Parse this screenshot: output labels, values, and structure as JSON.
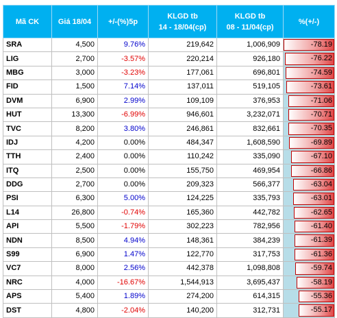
{
  "headers": {
    "code": "Mã CK",
    "price": "Giá 18/04",
    "change5": "+/-(%)5p",
    "vol1_line1": "KLGD tb",
    "vol1_line2": "14 - 18/04(cp)",
    "vol2_line1": "KLGD tb",
    "vol2_line2": "08 - 11/04(cp)",
    "pct": "%(+/-)"
  },
  "colors": {
    "header_bg": "#00b0f0",
    "positive": "#0000cc",
    "negative": "#e00000",
    "bar": "#e04848",
    "pct_bg": "#b7dde8"
  },
  "rows": [
    {
      "code": "SRA",
      "price": "4,500",
      "change": "9.76%",
      "dir": "pos",
      "vol1": "219,642",
      "vol2": "1,006,909",
      "pct": "-78.19",
      "frac": 1.0
    },
    {
      "code": "LIG",
      "price": "2,700",
      "change": "-3.57%",
      "dir": "neg",
      "vol1": "220,214",
      "vol2": "926,180",
      "pct": "-76.22",
      "frac": 0.975
    },
    {
      "code": "MBG",
      "price": "3,000",
      "change": "-3.23%",
      "dir": "neg",
      "vol1": "177,061",
      "vol2": "696,801",
      "pct": "-74.59",
      "frac": 0.954
    },
    {
      "code": "FID",
      "price": "1,500",
      "change": "7.14%",
      "dir": "pos",
      "vol1": "137,011",
      "vol2": "519,105",
      "pct": "-73.61",
      "frac": 0.941
    },
    {
      "code": "DVM",
      "price": "6,900",
      "change": "2.99%",
      "dir": "pos",
      "vol1": "109,109",
      "vol2": "376,953",
      "pct": "-71.06",
      "frac": 0.909
    },
    {
      "code": "HUT",
      "price": "13,300",
      "change": "-6.99%",
      "dir": "neg",
      "vol1": "946,601",
      "vol2": "3,232,071",
      "pct": "-70.71",
      "frac": 0.904
    },
    {
      "code": "TVC",
      "price": "8,200",
      "change": "3.80%",
      "dir": "pos",
      "vol1": "246,861",
      "vol2": "832,661",
      "pct": "-70.35",
      "frac": 0.9
    },
    {
      "code": "IDJ",
      "price": "4,200",
      "change": "0.00%",
      "dir": "zero",
      "vol1": "484,347",
      "vol2": "1,608,590",
      "pct": "-69.89",
      "frac": 0.894
    },
    {
      "code": "TTH",
      "price": "2,400",
      "change": "0.00%",
      "dir": "zero",
      "vol1": "110,242",
      "vol2": "335,090",
      "pct": "-67.10",
      "frac": 0.858
    },
    {
      "code": "ITQ",
      "price": "2,500",
      "change": "0.00%",
      "dir": "zero",
      "vol1": "155,750",
      "vol2": "469,954",
      "pct": "-66.86",
      "frac": 0.855
    },
    {
      "code": "DDG",
      "price": "2,700",
      "change": "0.00%",
      "dir": "zero",
      "vol1": "209,323",
      "vol2": "566,377",
      "pct": "-63.04",
      "frac": 0.806
    },
    {
      "code": "PSI",
      "price": "6,300",
      "change": "5.00%",
      "dir": "pos",
      "vol1": "124,225",
      "vol2": "335,793",
      "pct": "-63.01",
      "frac": 0.806
    },
    {
      "code": "L14",
      "price": "26,800",
      "change": "-0.74%",
      "dir": "neg",
      "vol1": "165,360",
      "vol2": "442,782",
      "pct": "-62.65",
      "frac": 0.801
    },
    {
      "code": "API",
      "price": "5,500",
      "change": "-1.79%",
      "dir": "neg",
      "vol1": "302,223",
      "vol2": "782,956",
      "pct": "-61.40",
      "frac": 0.785
    },
    {
      "code": "NDN",
      "price": "8,500",
      "change": "4.94%",
      "dir": "pos",
      "vol1": "148,361",
      "vol2": "384,239",
      "pct": "-61.39",
      "frac": 0.785
    },
    {
      "code": "S99",
      "price": "6,900",
      "change": "1.47%",
      "dir": "pos",
      "vol1": "122,770",
      "vol2": "317,753",
      "pct": "-61.36",
      "frac": 0.785
    },
    {
      "code": "VC7",
      "price": "8,000",
      "change": "2.56%",
      "dir": "pos",
      "vol1": "442,378",
      "vol2": "1,098,808",
      "pct": "-59.74",
      "frac": 0.764
    },
    {
      "code": "NRC",
      "price": "4,000",
      "change": "-16.67%",
      "dir": "neg",
      "vol1": "1,544,913",
      "vol2": "3,695,437",
      "pct": "-58.19",
      "frac": 0.744
    },
    {
      "code": "APS",
      "price": "5,400",
      "change": "1.89%",
      "dir": "pos",
      "vol1": "274,200",
      "vol2": "614,315",
      "pct": "-55.36",
      "frac": 0.708
    },
    {
      "code": "DST",
      "price": "4,800",
      "change": "-2.04%",
      "dir": "neg",
      "vol1": "140,200",
      "vol2": "312,731",
      "pct": "-55.17",
      "frac": 0.706
    }
  ]
}
